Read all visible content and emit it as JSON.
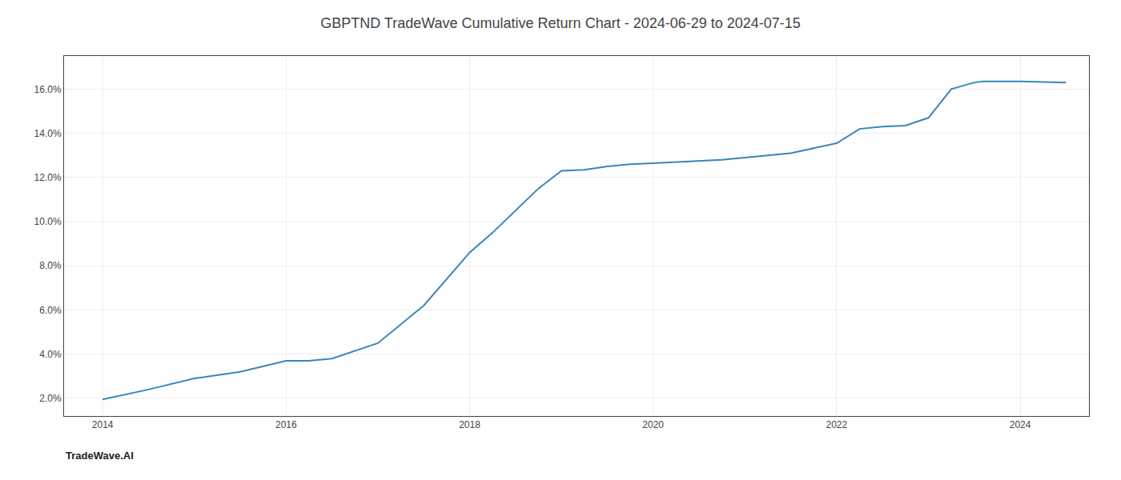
{
  "chart_data": {
    "type": "line",
    "title": "GBPTND TradeWave Cumulative Return Chart - 2024-06-29 to 2024-07-15",
    "annotations": [
      "TradeWave.AI"
    ],
    "x": [
      2014.0,
      2014.5,
      2015.0,
      2015.5,
      2016.0,
      2016.25,
      2016.5,
      2017.0,
      2017.5,
      2018.0,
      2018.25,
      2018.5,
      2018.75,
      2019.0,
      2019.25,
      2019.5,
      2019.75,
      2020.0,
      2020.25,
      2020.5,
      2020.75,
      2021.0,
      2021.5,
      2022.0,
      2022.25,
      2022.5,
      2022.75,
      2023.0,
      2023.25,
      2023.5,
      2023.6,
      2024.0,
      2024.5
    ],
    "values": [
      1.95,
      2.4,
      2.9,
      3.2,
      3.7,
      3.7,
      3.8,
      4.5,
      6.2,
      8.6,
      9.5,
      10.5,
      11.5,
      12.3,
      12.35,
      12.5,
      12.6,
      12.65,
      12.7,
      12.75,
      12.8,
      12.9,
      13.1,
      13.55,
      14.2,
      14.3,
      14.35,
      14.7,
      16.0,
      16.3,
      16.35,
      16.35,
      16.3
    ],
    "color": "#3a86b8",
    "xlim": [
      2013.58,
      2024.75
    ],
    "ylim": [
      1.2,
      17.5
    ],
    "xticks": [
      2014,
      2016,
      2018,
      2020,
      2022,
      2024
    ],
    "yticks": [
      {
        "value": 2.0,
        "label": "2.0%"
      },
      {
        "value": 4.0,
        "label": "4.0%"
      },
      {
        "value": 6.0,
        "label": "6.0%"
      },
      {
        "value": 8.0,
        "label": "8.0%"
      },
      {
        "value": 10.0,
        "label": "10.0%"
      },
      {
        "value": 12.0,
        "label": "12.0%"
      },
      {
        "value": 14.0,
        "label": "14.0%"
      },
      {
        "value": 16.0,
        "label": "16.0%"
      }
    ],
    "grid": true
  }
}
